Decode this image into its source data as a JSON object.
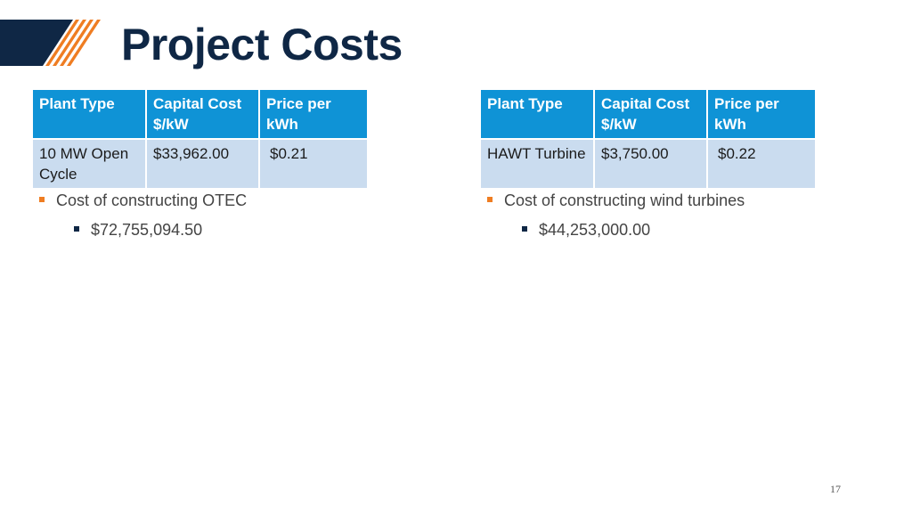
{
  "slide": {
    "title": "Project Costs",
    "page_number": "17",
    "colors": {
      "title": "#0f2745",
      "header_fill": "#0f93d6",
      "row_fill": "#cadcef",
      "accent_orange": "#ef7d22",
      "accent_navy": "#0f2745"
    }
  },
  "left": {
    "table": {
      "headers": [
        "Plant Type",
        "Capital Cost $/kW",
        "Price per kWh"
      ],
      "rows": [
        [
          "10 MW Open Cycle",
          "$33,962.00",
          "$0.21"
        ]
      ]
    },
    "bullet": "Cost of constructing OTEC",
    "sub_bullet": "$72,755,094.50"
  },
  "right": {
    "table": {
      "headers": [
        "Plant Type",
        "Capital Cost $/kW",
        "Price per kWh"
      ],
      "rows": [
        [
          "HAWT Turbine",
          "$3,750.00",
          "$0.22"
        ]
      ]
    },
    "bullet": "Cost of constructing wind turbines",
    "sub_bullet": "$44,253,000.00"
  }
}
